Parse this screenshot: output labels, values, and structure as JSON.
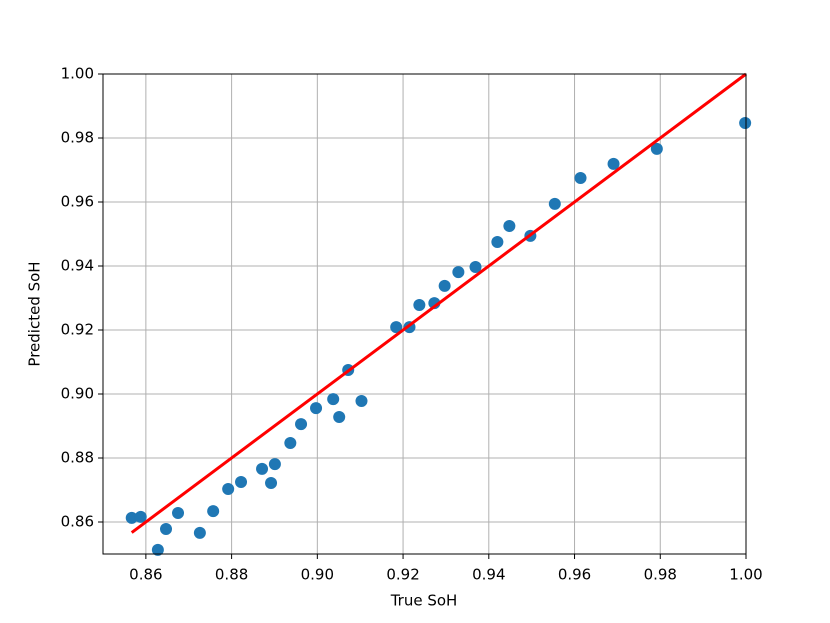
{
  "chart_data": {
    "type": "scatter",
    "xlabel": "True SoH",
    "ylabel": "Predicted SoH",
    "xlim": [
      0.85,
      1.0
    ],
    "ylim": [
      0.85,
      1.0
    ],
    "xticks": [
      0.86,
      0.88,
      {
        "value": 0.9,
        "label": "0.90"
      },
      0.92,
      0.94,
      0.96,
      0.98,
      {
        "value": 1.0,
        "label": "1.00"
      }
    ],
    "yticks": [
      0.86,
      0.88,
      {
        "value": 0.9,
        "label": "0.90"
      },
      0.92,
      0.94,
      0.96,
      0.98,
      {
        "value": 1.0,
        "label": "1.00"
      }
    ],
    "grid": true,
    "series": [
      {
        "type": "scatter",
        "color": "#1f77b4",
        "x": [
          0.8567,
          0.8588,
          0.8628,
          0.8647,
          0.8675,
          0.8726,
          0.8757,
          0.8792,
          0.8822,
          0.8871,
          0.8892,
          0.8901,
          0.8937,
          0.8962,
          0.8997,
          0.9037,
          0.9051,
          0.9072,
          0.9103,
          0.9184,
          0.9215,
          0.9238,
          0.9273,
          0.9297,
          0.9329,
          0.9369,
          0.942,
          0.9448,
          0.9497,
          0.9554,
          0.9614,
          0.9691,
          0.9792,
          0.9998
        ],
        "values": [
          0.8613,
          0.8616,
          0.8513,
          0.8578,
          0.8628,
          0.8566,
          0.8634,
          0.8703,
          0.8725,
          0.8766,
          0.8722,
          0.8781,
          0.8847,
          0.8906,
          0.8956,
          0.8984,
          0.8928,
          0.9075,
          0.8978,
          0.9209,
          0.9209,
          0.9278,
          0.9284,
          0.9338,
          0.9381,
          0.9397,
          0.9475,
          0.9525,
          0.9494,
          0.9594,
          0.9675,
          0.9719,
          0.9766,
          0.9847
        ]
      },
      {
        "type": "line",
        "color": "#ff0000",
        "x": [
          0.8567,
          1.0
        ],
        "values": [
          0.8567,
          1.0
        ]
      }
    ]
  }
}
